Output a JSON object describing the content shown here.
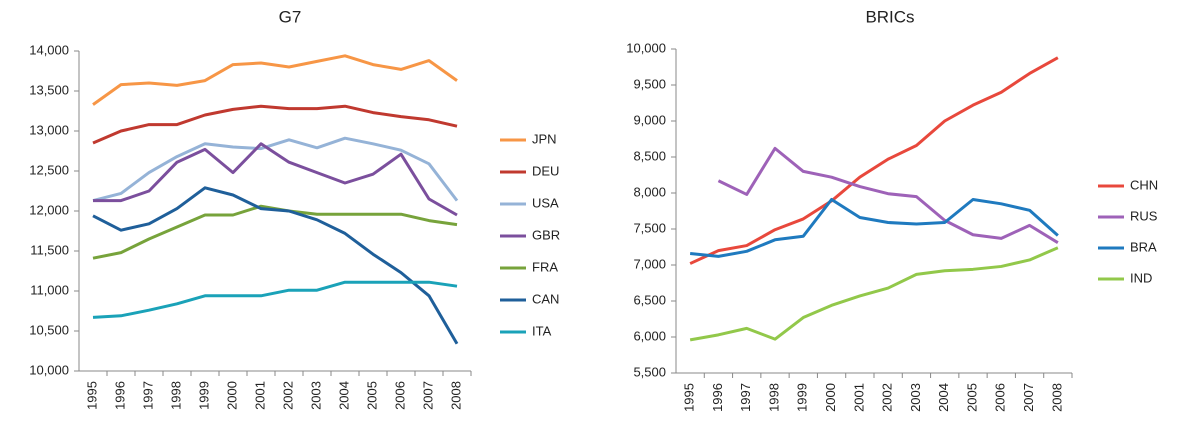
{
  "chart_data": [
    {
      "type": "line",
      "title": "G7",
      "categories": [
        "1995",
        "1996",
        "1997",
        "1998",
        "1999",
        "2000",
        "2001",
        "2002",
        "2003",
        "2004",
        "2005",
        "2006",
        "2007",
        "2008"
      ],
      "ylim": [
        10000,
        14000
      ],
      "yticks": [
        {
          "value": 10000,
          "label": "10,000"
        },
        {
          "value": 10500,
          "label": "10,500"
        },
        {
          "value": 11000,
          "label": "11,000"
        },
        {
          "value": 11500,
          "label": "11,500"
        },
        {
          "value": 12000,
          "label": "12,000"
        },
        {
          "value": 12500,
          "label": "12,500"
        },
        {
          "value": 13000,
          "label": "13,000"
        },
        {
          "value": 13500,
          "label": "13,500"
        },
        {
          "value": 14000,
          "label": "14,000"
        }
      ],
      "legend": "right",
      "series": [
        {
          "name": "JPN",
          "color": "#f79646",
          "values": [
            13330,
            13580,
            13600,
            13570,
            13630,
            13830,
            13850,
            13800,
            13870,
            13940,
            13830,
            13770,
            13880,
            13630
          ]
        },
        {
          "name": "DEU",
          "color": "#c0392f",
          "values": [
            12850,
            13000,
            13080,
            13080,
            13200,
            13270,
            13310,
            13280,
            13280,
            13310,
            13230,
            13180,
            13140,
            13060
          ]
        },
        {
          "name": "USA",
          "color": "#95b3d7",
          "values": [
            12130,
            12220,
            12480,
            12680,
            12840,
            12800,
            12780,
            12890,
            12790,
            12910,
            12840,
            12760,
            12590,
            12130
          ]
        },
        {
          "name": "GBR",
          "color": "#7b4f9d",
          "values": [
            12130,
            12130,
            12250,
            12610,
            12770,
            12480,
            12840,
            12610,
            12480,
            12350,
            12460,
            12710,
            12150,
            11950
          ]
        },
        {
          "name": "FRA",
          "color": "#77a33b",
          "values": [
            11410,
            11480,
            11650,
            11800,
            11950,
            11950,
            12060,
            12000,
            11960,
            11960,
            11960,
            11960,
            11880,
            11830
          ]
        },
        {
          "name": "CAN",
          "color": "#1f5f9a",
          "values": [
            11940,
            11760,
            11840,
            12030,
            12290,
            12200,
            12030,
            12000,
            11890,
            11720,
            11460,
            11230,
            10940,
            10340
          ]
        },
        {
          "name": "ITA",
          "color": "#1aa2b8",
          "values": [
            10670,
            10690,
            10760,
            10840,
            10940,
            10940,
            10940,
            11010,
            11010,
            11110,
            11110,
            11110,
            11110,
            11060
          ]
        }
      ]
    },
    {
      "type": "line",
      "title": "BRICs",
      "categories": [
        "1995",
        "1996",
        "1997",
        "1998",
        "1999",
        "2000",
        "2001",
        "2002",
        "2003",
        "2004",
        "2005",
        "2006",
        "2007",
        "2008"
      ],
      "ylim": [
        5500,
        10000
      ],
      "yticks": [
        {
          "value": 5500,
          "label": "5,500"
        },
        {
          "value": 6000,
          "label": "6,000"
        },
        {
          "value": 6500,
          "label": "6,500"
        },
        {
          "value": 7000,
          "label": "7,000"
        },
        {
          "value": 7500,
          "label": "7,500"
        },
        {
          "value": 8000,
          "label": "8,000"
        },
        {
          "value": 8500,
          "label": "8,500"
        },
        {
          "value": 9000,
          "label": "9,000"
        },
        {
          "value": 9500,
          "label": "9,500"
        },
        {
          "value": 10000,
          "label": "10,000"
        }
      ],
      "legend": "right",
      "series": [
        {
          "name": "CHN",
          "color": "#e8483c",
          "values": [
            7020,
            7200,
            7270,
            7490,
            7640,
            7890,
            8220,
            8470,
            8660,
            9000,
            9220,
            9400,
            9660,
            9880
          ]
        },
        {
          "name": "RUS",
          "color": "#9e62b8",
          "values": [
            null,
            8170,
            7980,
            8620,
            8300,
            8220,
            8090,
            7990,
            7950,
            7620,
            7420,
            7370,
            7550,
            7310
          ]
        },
        {
          "name": "BRA",
          "color": "#1f7abf",
          "values": [
            7160,
            7120,
            7190,
            7350,
            7400,
            7910,
            7660,
            7590,
            7570,
            7590,
            7910,
            7850,
            7760,
            7410
          ]
        },
        {
          "name": "IND",
          "color": "#92c84a",
          "values": [
            5960,
            6030,
            6120,
            5970,
            6270,
            6440,
            6570,
            6680,
            6870,
            6920,
            6940,
            6980,
            7070,
            7240
          ]
        }
      ]
    }
  ]
}
